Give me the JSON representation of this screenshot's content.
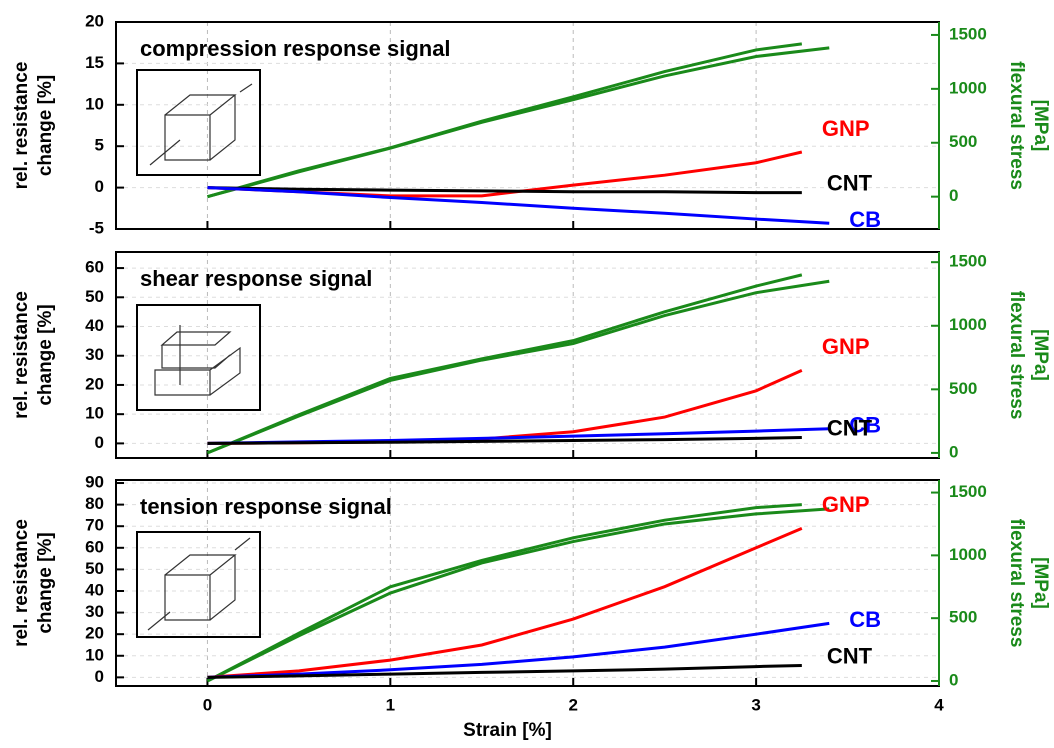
{
  "chart_data": [
    {
      "type": "line",
      "title": "compression response signal",
      "ylabel": [
        "rel. resistance",
        "change [%]"
      ],
      "y2label": [
        "flexural stress",
        "[MPa]"
      ],
      "xlim": [
        -0.5,
        4
      ],
      "xticks": [
        0,
        1,
        2,
        3,
        4
      ],
      "ylim": [
        -5,
        20
      ],
      "yticks": [
        -5,
        0,
        5,
        10,
        15,
        20
      ],
      "y2lim": [
        -300,
        1620
      ],
      "y2ticks": [
        0,
        500,
        1000,
        1500
      ],
      "grid": true,
      "series": [
        {
          "color": "#1a8a1a",
          "axis": "y2",
          "x": [
            0,
            0.5,
            1,
            1.5,
            2,
            2.5,
            3,
            3.25
          ],
          "values": [
            0,
            240,
            453,
            700,
            926,
            1160,
            1361,
            1417
          ]
        },
        {
          "color": "#1a8a1a",
          "axis": "y2",
          "x": [
            0,
            0.5,
            1,
            1.5,
            2,
            2.5,
            3,
            3.4
          ],
          "values": [
            0,
            230,
            450,
            690,
            900,
            1120,
            1300,
            1380
          ]
        },
        {
          "name": "GNP",
          "color": "#ff0000",
          "x": [
            0,
            0.5,
            1,
            1.5,
            2,
            2.5,
            3,
            3.25
          ],
          "values": [
            0,
            -0.5,
            -1,
            -1,
            0.3,
            1.5,
            3,
            4.3
          ]
        },
        {
          "name": "CNT",
          "color": "#000000",
          "x": [
            0,
            0.5,
            1,
            1.5,
            2,
            2.5,
            3,
            3.25
          ],
          "values": [
            0,
            -0.2,
            -0.3,
            -0.4,
            -0.5,
            -0.5,
            -0.6,
            -0.6
          ]
        },
        {
          "name": "CB",
          "color": "#0000ff",
          "x": [
            0,
            0.5,
            1,
            1.5,
            2,
            2.5,
            3,
            3.4
          ],
          "values": [
            0,
            -0.5,
            -1.2,
            -1.8,
            -2.5,
            -3.1,
            -3.8,
            -4.3
          ]
        }
      ]
    },
    {
      "type": "line",
      "title": "shear response signal",
      "ylabel": [
        "rel. resistance",
        "change [%]"
      ],
      "y2label": [
        "flexural stress",
        "[MPa]"
      ],
      "xlim": [
        -0.5,
        4
      ],
      "xticks": [
        0,
        1,
        2,
        3,
        4
      ],
      "ylim": [
        -5,
        65.5
      ],
      "yticks": [
        0,
        10,
        20,
        30,
        40,
        50,
        60
      ],
      "y2lim": [
        -40,
        1580
      ],
      "y2ticks": [
        0,
        500,
        1000,
        1500
      ],
      "grid": true,
      "series": [
        {
          "color": "#1a8a1a",
          "axis": "y2",
          "x": [
            0,
            0.5,
            1,
            1.5,
            2,
            2.5,
            3,
            3.25
          ],
          "values": [
            0,
            300,
            586,
            740,
            883,
            1110,
            1312,
            1400
          ]
        },
        {
          "color": "#1a8a1a",
          "axis": "y2",
          "x": [
            0,
            0.5,
            1,
            1.5,
            2,
            2.5,
            3,
            3.4
          ],
          "values": [
            0,
            290,
            570,
            730,
            860,
            1080,
            1260,
            1350
          ]
        },
        {
          "name": "GNP",
          "color": "#ff0000",
          "x": [
            0,
            0.5,
            1,
            1.5,
            2,
            2.5,
            3,
            3.25
          ],
          "values": [
            0,
            0.2,
            0.5,
            1.5,
            4,
            9,
            18,
            25
          ]
        },
        {
          "name": "CB",
          "color": "#0000ff",
          "x": [
            0,
            0.5,
            1,
            1.5,
            2,
            2.5,
            3,
            3.4
          ],
          "values": [
            0,
            0.5,
            1,
            1.7,
            2.5,
            3.3,
            4.2,
            5
          ]
        },
        {
          "name": "CNT",
          "color": "#000000",
          "x": [
            0,
            0.5,
            1,
            1.5,
            2,
            2.5,
            3,
            3.25
          ],
          "values": [
            0,
            0.2,
            0.4,
            0.7,
            1,
            1.3,
            1.7,
            2
          ]
        }
      ]
    },
    {
      "type": "line",
      "title": "tension response signal",
      "ylabel": [
        "rel. resistance",
        "change [%]"
      ],
      "y2label": [
        "flexural stress",
        "[MPa]"
      ],
      "xlabel": "Strain [%]",
      "xlim": [
        -0.5,
        4
      ],
      "xticks": [
        0,
        1,
        2,
        3,
        4
      ],
      "ylim": [
        -4,
        91.4
      ],
      "yticks": [
        0,
        10,
        20,
        30,
        40,
        50,
        60,
        70,
        80,
        90
      ],
      "y2lim": [
        -40,
        1600
      ],
      "y2ticks": [
        0,
        500,
        1000,
        1500
      ],
      "grid": true,
      "series": [
        {
          "color": "#1a8a1a",
          "axis": "y2",
          "x": [
            0,
            0.5,
            1,
            1.5,
            2,
            2.5,
            3,
            3.25
          ],
          "values": [
            0,
            380,
            750,
            960,
            1140,
            1280,
            1380,
            1404
          ]
        },
        {
          "color": "#1a8a1a",
          "axis": "y2",
          "x": [
            0,
            0.5,
            1,
            1.5,
            2,
            2.5,
            3,
            3.4
          ],
          "values": [
            0,
            360,
            700,
            940,
            1110,
            1250,
            1330,
            1370
          ]
        },
        {
          "name": "GNP",
          "color": "#ff0000",
          "x": [
            0,
            0.5,
            1,
            1.5,
            2,
            2.5,
            3,
            3.25
          ],
          "values": [
            0,
            3,
            8,
            15,
            27,
            42,
            60,
            69
          ]
        },
        {
          "name": "CB",
          "color": "#0000ff",
          "x": [
            0,
            0.5,
            1,
            1.5,
            2,
            2.5,
            3,
            3.4
          ],
          "values": [
            0,
            1.5,
            3.5,
            6,
            9.5,
            14,
            20,
            25
          ]
        },
        {
          "name": "CNT",
          "color": "#000000",
          "x": [
            0,
            0.5,
            1,
            1.5,
            2,
            2.5,
            3,
            3.25
          ],
          "values": [
            0,
            0.7,
            1.5,
            2.3,
            3,
            3.8,
            5,
            5.5
          ]
        }
      ]
    }
  ]
}
